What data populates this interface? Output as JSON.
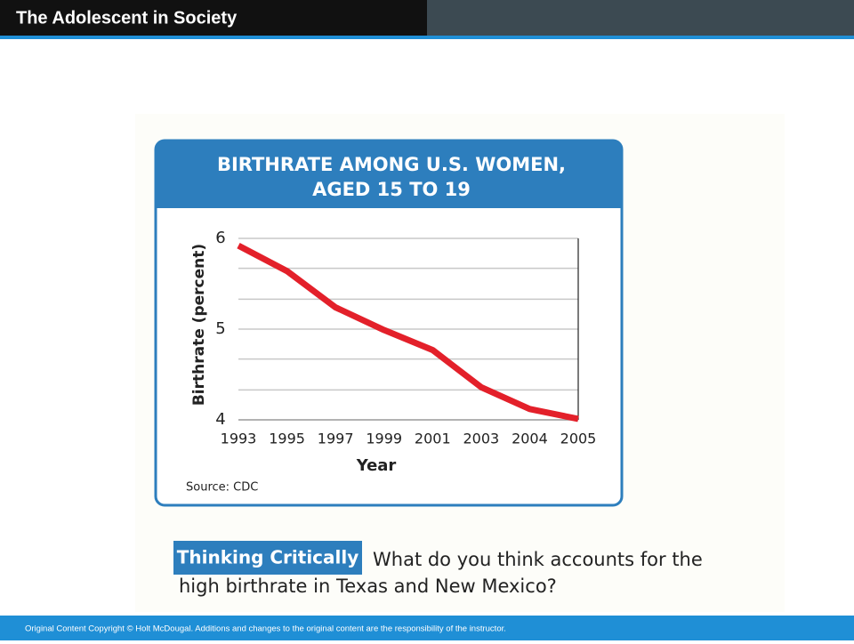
{
  "header": {
    "title": "The Adolescent in Society"
  },
  "chart_data": {
    "type": "line",
    "title_lines": [
      "BIRTHRATE AMONG U.S. WOMEN,",
      "AGED 15 TO 19"
    ],
    "categories": [
      "1993",
      "1995",
      "1997",
      "1999",
      "2001",
      "2003",
      "2004",
      "2005"
    ],
    "values": [
      5.92,
      5.64,
      5.24,
      4.99,
      4.77,
      4.36,
      4.12,
      4.01
    ],
    "color": "#e3202a",
    "ylim": [
      4,
      6
    ],
    "yticks": [
      4,
      5,
      6
    ],
    "ygrid": [
      4.33,
      4.67,
      5,
      5.33,
      5.67,
      6
    ],
    "xlabel": "Year",
    "ylabel": "Birthrate (percent)",
    "source": "Source: CDC"
  },
  "thinking": {
    "badge": "Thinking Critically",
    "question_lines": [
      "What do you think accounts for the",
      "high birthrate in Texas and New Mexico?"
    ]
  },
  "footer": {
    "text": "Original Content Copyright © Holt McDougal. Additions and changes to the original content are the responsibility of the instructor."
  }
}
